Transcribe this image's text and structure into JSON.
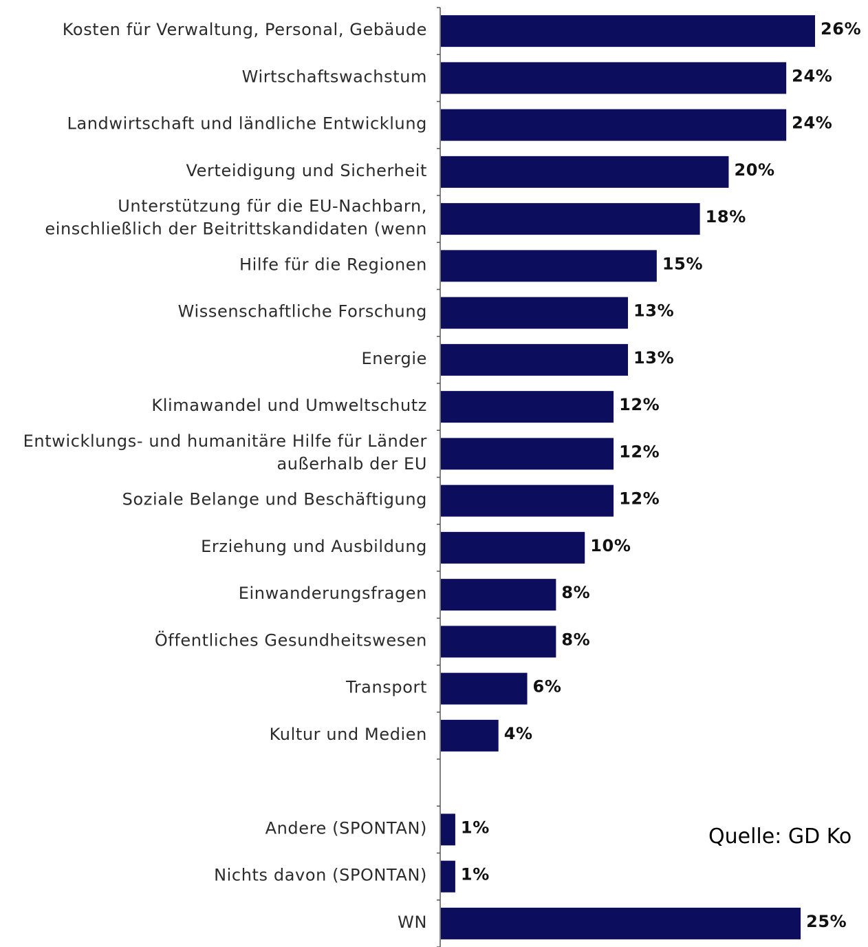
{
  "source_text": "Quelle: GD Ko",
  "chart_data": {
    "type": "bar",
    "orientation": "horizontal",
    "bar_color": "#0d0d5e",
    "categories": [
      "Kosten für Verwaltung, Personal, Gebäude",
      "Wirtschaftswachstum",
      "Landwirtschaft und ländliche Entwicklung",
      "Verteidigung und Sicherheit",
      "Unterstützung für die EU-Nachbarn, einschließlich der Beitrittskandidaten (wenn",
      "Hilfe für die Regionen",
      "Wissenschaftliche Forschung",
      "Energie",
      "Klimawandel und Umweltschutz",
      "Entwicklungs- und humanitäre Hilfe für Länder außerhalb der EU",
      "Soziale Belange und Beschäftigung",
      "Erziehung und Ausbildung",
      "Einwanderungsfragen",
      "Öffentliches Gesundheitswesen",
      "Transport",
      "Kultur und Medien",
      "",
      "Andere (SPONTAN)",
      "Nichts davon (SPONTAN)",
      "WN"
    ],
    "category_lines": [
      [
        "Kosten für Verwaltung, Personal, Gebäude"
      ],
      [
        "Wirtschaftswachstum"
      ],
      [
        "Landwirtschaft und ländliche Entwicklung"
      ],
      [
        "Verteidigung und Sicherheit"
      ],
      [
        "Unterstützung für die EU-Nachbarn,",
        "einschließlich der Beitrittskandidaten (wenn"
      ],
      [
        "Hilfe für die Regionen"
      ],
      [
        "Wissenschaftliche Forschung"
      ],
      [
        "Energie"
      ],
      [
        "Klimawandel und Umweltschutz"
      ],
      [
        "Entwicklungs- und humanitäre Hilfe für Länder",
        "außerhalb der EU"
      ],
      [
        "Soziale Belange und Beschäftigung"
      ],
      [
        "Erziehung und Ausbildung"
      ],
      [
        "Einwanderungsfragen"
      ],
      [
        "Öffentliches Gesundheitswesen"
      ],
      [
        "Transport"
      ],
      [
        "Kultur und Medien"
      ],
      [],
      [
        "Andere (SPONTAN)"
      ],
      [
        "Nichts davon (SPONTAN)"
      ],
      [
        "WN"
      ]
    ],
    "values": [
      26,
      24,
      24,
      20,
      18,
      15,
      13,
      13,
      12,
      12,
      12,
      10,
      8,
      8,
      6,
      4,
      null,
      1,
      1,
      25
    ],
    "value_labels": [
      "26%",
      "24%",
      "24%",
      "20%",
      "18%",
      "15%",
      "13%",
      "13%",
      "12%",
      "12%",
      "12%",
      "10%",
      "8%",
      "8%",
      "6%",
      "4%",
      "",
      "1%",
      "1%",
      "25%"
    ],
    "xlim": [
      0,
      26
    ],
    "grid": false,
    "legend": "none"
  }
}
